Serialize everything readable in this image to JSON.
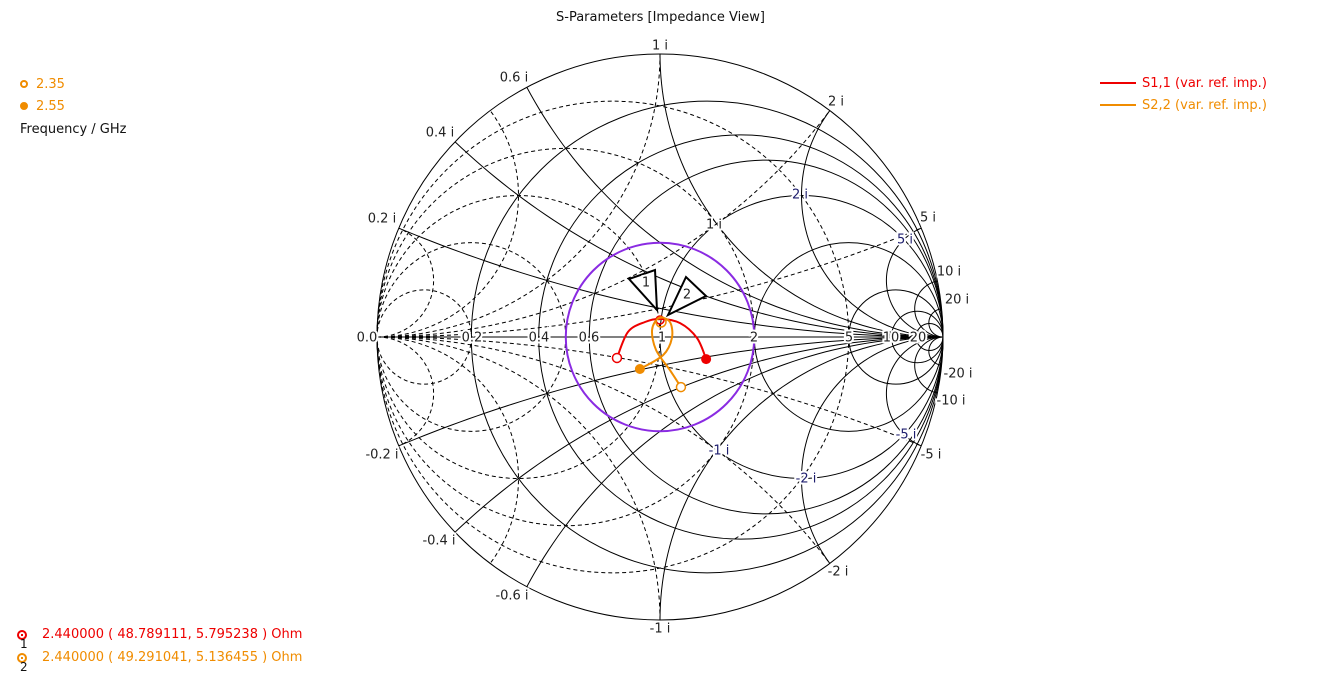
{
  "chart_data": {
    "type": "smith",
    "title": "S-Parameters [Impedance View]",
    "legend_placement": "top-right",
    "series": [
      {
        "name": "S1,1 (var. ref. imp.)",
        "color": "#ee0000",
        "gamma": [
          [
            -0.152,
            -0.074
          ],
          [
            -0.113,
            0.018
          ],
          [
            -0.053,
            0.053
          ],
          [
            0.0,
            0.064
          ],
          [
            0.071,
            0.049
          ],
          [
            0.131,
            -0.004
          ],
          [
            0.163,
            -0.078
          ]
        ]
      },
      {
        "name": "S2,2 (var. ref. imp.)",
        "color": "#f08c00",
        "gamma": [
          [
            0.074,
            -0.177
          ],
          [
            0.035,
            -0.117
          ],
          [
            -0.014,
            -0.046
          ],
          [
            -0.028,
            0.025
          ],
          [
            -0.004,
            0.067
          ],
          [
            0.035,
            0.053
          ],
          [
            0.042,
            -0.004
          ],
          [
            0.011,
            -0.064
          ],
          [
            -0.071,
            -0.113
          ]
        ]
      }
    ],
    "frequency_legend": {
      "start": "2.35",
      "end": "2.55",
      "label": "Frequency / GHz"
    },
    "vswr_circle": {
      "gamma_magnitude": 0.333,
      "color": "#8a2be2"
    },
    "real_axis_labels": [
      "0.0",
      "0.2",
      "0.4",
      "0.6",
      "1",
      "2",
      "5",
      "10",
      "20"
    ],
    "outer_imag_labels": [
      "1 i",
      "0.6 i",
      "0.4 i",
      "0.2 i",
      "2 i",
      "5 i",
      "10 i",
      "20 i",
      "-0.2 i",
      "-0.4 i",
      "-0.6 i",
      "-1 i",
      "-2 i",
      "-5 i",
      "-10 i",
      "-20 i"
    ],
    "inner_imag_labels": [
      "1 i",
      "2 i",
      "5 i",
      "-1 i",
      "-2 i",
      "-5 i"
    ],
    "markers": [
      {
        "id": "1",
        "color": "#ee0000",
        "text": "2.440000 ( 48.789111, 5.795238 ) Ohm"
      },
      {
        "id": "2",
        "color": "#f08c00",
        "text": "2.440000 ( 49.291041, 5.136455 ) Ohm"
      }
    ]
  }
}
